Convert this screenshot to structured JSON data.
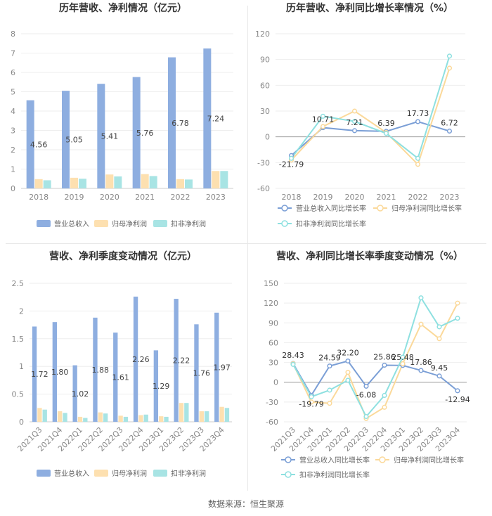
{
  "colors": {
    "revenue": "#8eaee0",
    "net_profit": "#fde0b0",
    "deducted_profit": "#a8e4e4",
    "line_revenue": "#7b9fd6",
    "line_net": "#fbd99a",
    "line_deducted": "#8ee0e0"
  },
  "source": "数据来源：恒生聚源",
  "chart_data": [
    {
      "id": "annual_values",
      "type": "bar",
      "title": "历年营收、净利情况（亿元）",
      "categories": [
        "2018",
        "2019",
        "2020",
        "2021",
        "2022",
        "2023"
      ],
      "ylim": [
        0,
        8
      ],
      "yticks": [
        0,
        1,
        2,
        3,
        4,
        5,
        6,
        7,
        8
      ],
      "series": [
        {
          "name": "营业总收入",
          "values": [
            4.56,
            5.05,
            5.41,
            5.76,
            6.78,
            7.24
          ],
          "labels": [
            "4.56",
            "5.05",
            "5.41",
            "5.76",
            "6.78",
            "7.24"
          ]
        },
        {
          "name": "归母净利润",
          "values": [
            0.48,
            0.55,
            0.72,
            0.74,
            0.48,
            0.9
          ]
        },
        {
          "name": "扣非净利润",
          "values": [
            0.42,
            0.5,
            0.62,
            0.64,
            0.46,
            0.9
          ]
        }
      ],
      "legend": "bottom"
    },
    {
      "id": "annual_growth",
      "type": "line",
      "title": "历年营收、净利同比增长率情况（%）",
      "categories": [
        "2018",
        "2019",
        "2020",
        "2021",
        "2022",
        "2023"
      ],
      "ylim": [
        -60,
        120
      ],
      "yticks": [
        -60,
        -30,
        0,
        30,
        60,
        90,
        120
      ],
      "series": [
        {
          "name": "营业总收入同比增长率",
          "values": [
            -21.79,
            10.71,
            7.21,
            6.39,
            17.73,
            6.72
          ],
          "labels": [
            "-21.79",
            "10.71",
            "7.21",
            "6.39",
            "17.73",
            "6.72"
          ]
        },
        {
          "name": "归母净利润同比增长率",
          "values": [
            -27,
            12,
            30,
            5,
            -32,
            80
          ]
        },
        {
          "name": "扣非净利润同比增长率",
          "values": [
            -25,
            24,
            18,
            4,
            -25,
            94
          ]
        }
      ],
      "legend": "bottom"
    },
    {
      "id": "quarterly_values",
      "type": "bar",
      "title": "营收、净利季度变动情况（亿元）",
      "categories": [
        "2021Q3",
        "2021Q4",
        "2022Q1",
        "2022Q2",
        "2022Q3",
        "2022Q4",
        "2023Q1",
        "2023Q2",
        "2023Q3",
        "2023Q4"
      ],
      "ylim": [
        0,
        2.5
      ],
      "yticks": [
        0,
        0.5,
        1,
        1.5,
        2,
        2.5
      ],
      "series": [
        {
          "name": "营业总收入",
          "values": [
            1.72,
            1.8,
            1.02,
            1.88,
            1.61,
            2.26,
            1.29,
            2.22,
            1.76,
            1.97
          ],
          "labels": [
            "1.72",
            "1.80",
            "1.02",
            "1.88",
            "1.61",
            "2.26",
            "1.29",
            "2.22",
            "1.76",
            "1.97"
          ]
        },
        {
          "name": "归母净利润",
          "values": [
            0.25,
            0.19,
            0.09,
            0.17,
            0.11,
            0.12,
            0.1,
            0.34,
            0.19,
            0.27
          ]
        },
        {
          "name": "扣非净利润",
          "values": [
            0.22,
            0.16,
            0.07,
            0.15,
            0.09,
            0.13,
            0.09,
            0.34,
            0.19,
            0.25
          ]
        }
      ],
      "legend": "bottom"
    },
    {
      "id": "quarterly_growth",
      "type": "line",
      "title": "营收、净利同比增长率季度变动情况（%）",
      "categories": [
        "2021Q3",
        "2021Q4",
        "2022Q1",
        "2022Q2",
        "2022Q3",
        "2022Q4",
        "2023Q1",
        "2023Q2",
        "2023Q3",
        "2023Q4"
      ],
      "ylim": [
        -60,
        150
      ],
      "yticks": [
        -60,
        -30,
        0,
        30,
        60,
        90,
        120,
        150
      ],
      "series": [
        {
          "name": "营业总收入同比增长率",
          "values": [
            28.43,
            -19.79,
            24.59,
            32.2,
            -6.08,
            25.86,
            25.48,
            17.86,
            9.45,
            -12.94
          ],
          "labels": [
            "28.43",
            "-19.79",
            "24.59",
            "32.20",
            "-6.08",
            "25.86",
            "25.48",
            "17.86",
            "9.45",
            "-12.94"
          ]
        },
        {
          "name": "归母净利润同比增长率",
          "values": [
            28,
            -30,
            -32,
            15,
            -55,
            -38,
            28,
            88,
            66,
            120
          ]
        },
        {
          "name": "扣非净利润同比增长率",
          "values": [
            27,
            -22,
            -12,
            3,
            -52,
            -20,
            38,
            128,
            84,
            97
          ]
        }
      ],
      "legend": "bottom"
    }
  ]
}
